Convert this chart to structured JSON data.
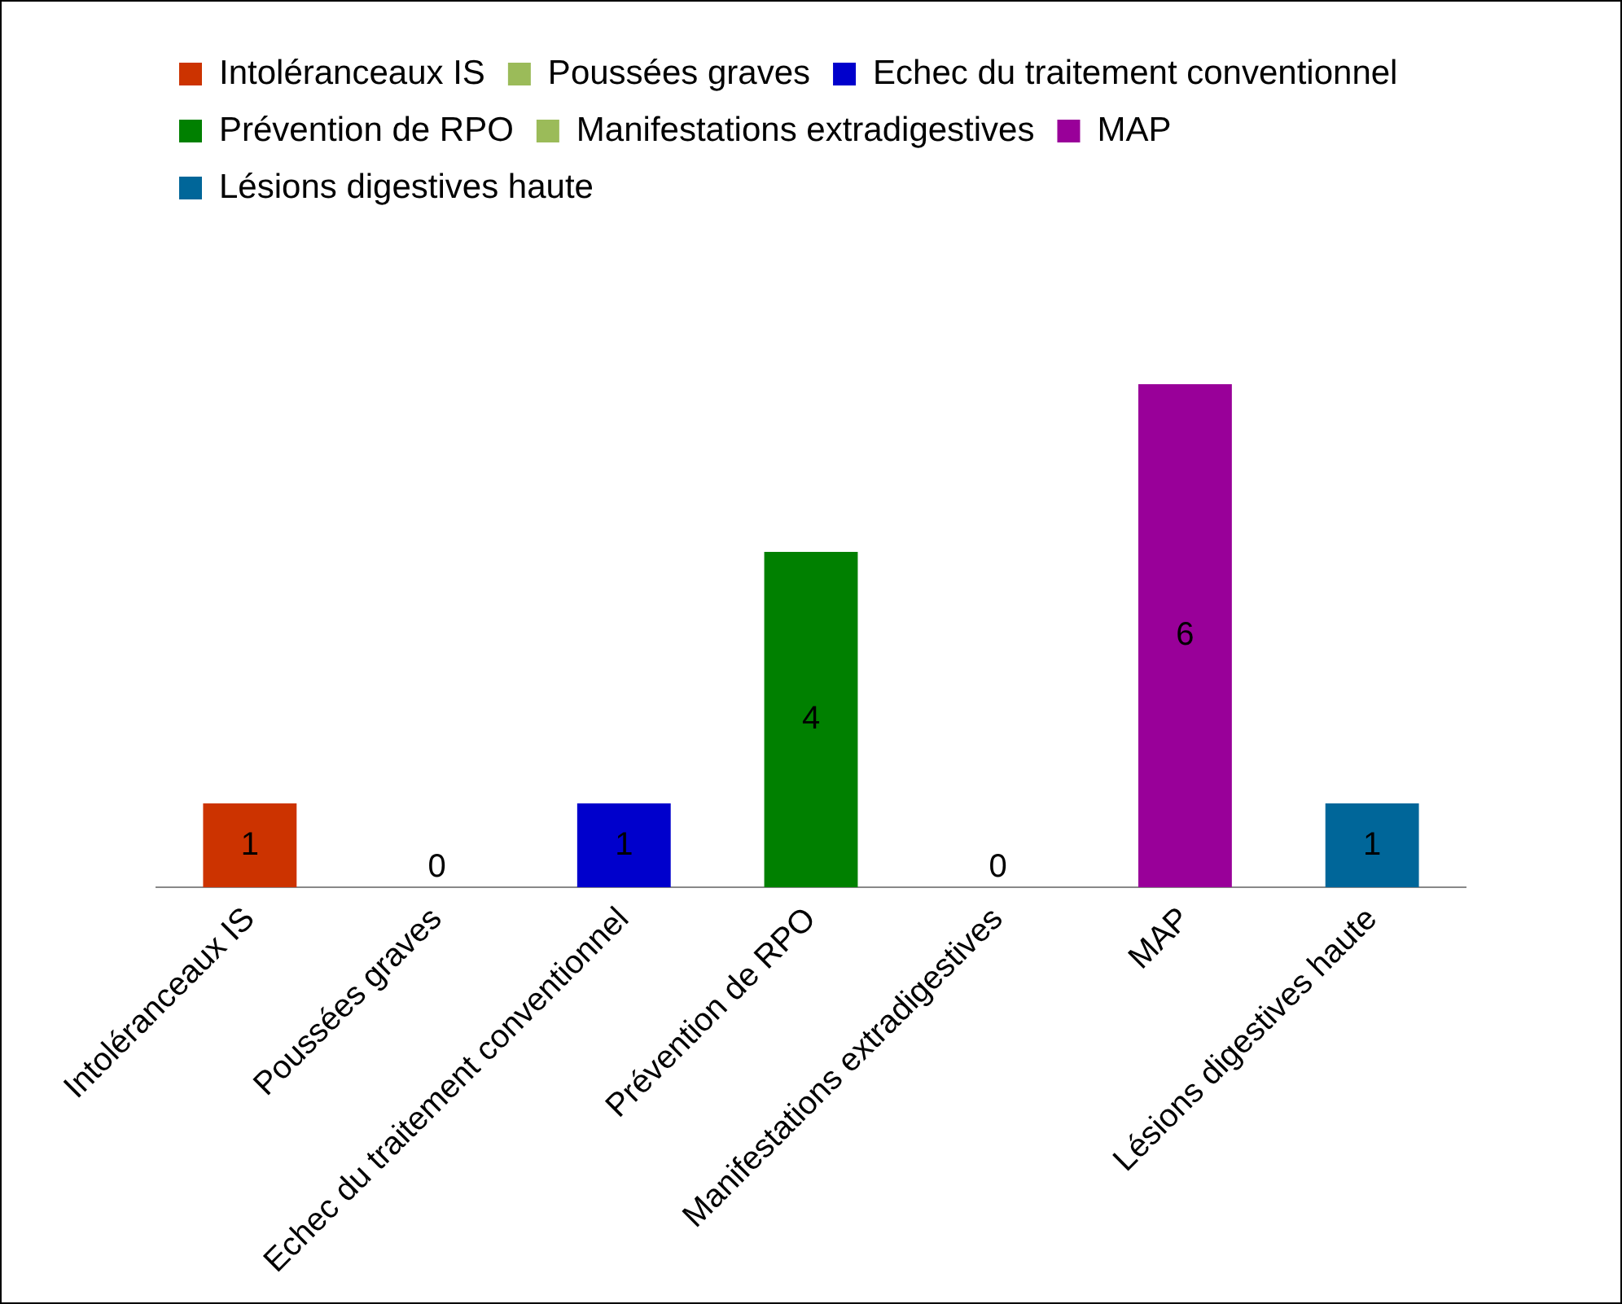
{
  "chart_data": {
    "type": "bar",
    "categories": [
      "Intoléranceaux IS",
      "Poussées graves",
      "Echec du traitement conventionnel",
      "Prévention de RPO",
      "Manifestations extradigestives",
      "MAP",
      "Lésions digestives haute"
    ],
    "series": [
      {
        "name": "Intoléranceaux IS",
        "color": "#cc3300",
        "values": [
          1,
          null,
          null,
          null,
          null,
          null,
          null
        ]
      },
      {
        "name": "Poussées graves",
        "color": "#9bbb59",
        "values": [
          null,
          0,
          null,
          null,
          null,
          null,
          null
        ]
      },
      {
        "name": "Echec du traitement conventionnel",
        "color": "#0000cc",
        "values": [
          null,
          null,
          1,
          null,
          null,
          null,
          null
        ]
      },
      {
        "name": "Prévention de RPO",
        "color": "#008000",
        "values": [
          null,
          null,
          null,
          4,
          null,
          null,
          null
        ]
      },
      {
        "name": "Manifestations extradigestives",
        "color": "#9bbb59",
        "values": [
          null,
          null,
          null,
          null,
          0,
          null,
          null
        ]
      },
      {
        "name": "MAP",
        "color": "#990099",
        "values": [
          null,
          null,
          null,
          null,
          null,
          6,
          null
        ]
      },
      {
        "name": "Lésions digestives haute",
        "color": "#006699",
        "values": [
          null,
          null,
          null,
          null,
          null,
          null,
          1
        ]
      }
    ],
    "data_labels": true,
    "legend": "top left",
    "grid": false
  }
}
